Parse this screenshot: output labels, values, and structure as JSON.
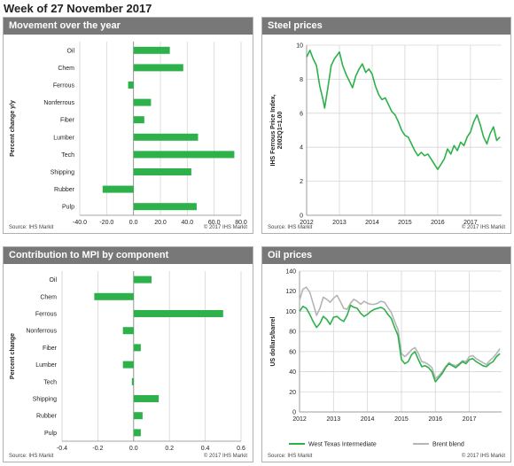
{
  "page": {
    "title": "Week of 27 November 2017"
  },
  "colors": {
    "green": "#2db14a",
    "grey_line": "#b5b5b5",
    "header_bg": "#787878",
    "grid": "#d6d6d6"
  },
  "panels": [
    {
      "title": "Movement over the year",
      "source": "Source: IHS Markit",
      "copyright": "© 2017 IHS Markit"
    },
    {
      "title": "Steel prices",
      "source": "Source: IHS Markit",
      "copyright": "© 2017 IHS Markit"
    },
    {
      "title": "Contribution  to MPI by component",
      "source": "Source: IHS Markit",
      "copyright": "© 2017 IHS Markit"
    },
    {
      "title": "Oil  prices",
      "source": "Source: IHS Markit",
      "copyright": "© 2017 IHS Markit"
    }
  ],
  "chart_data": [
    {
      "type": "bar",
      "orientation": "horizontal",
      "title": "Movement over the year",
      "categories": [
        "Oil",
        "Chem",
        "Ferrous",
        "Nonferrous",
        "Fiber",
        "Lumber",
        "Tech",
        "Shipping",
        "Rubber",
        "Pulp"
      ],
      "values": [
        27,
        37,
        -4,
        13,
        8,
        48,
        75,
        43,
        -23,
        47
      ],
      "xlabel": "",
      "ylabel": "Percent change y/y",
      "xlim": [
        -40,
        80
      ],
      "xticks": [
        -40,
        -20,
        0,
        20,
        40,
        60,
        80
      ],
      "xtick_labels": [
        "-40.0",
        "-20.0",
        "0.0",
        "20.0",
        "40.0",
        "60.0",
        "80.0"
      ],
      "grid": true
    },
    {
      "type": "line",
      "title": "Steel prices",
      "ylabel": "IHS Ferrous Price Index,\n2002Q1=1.00",
      "xlim": [
        2012,
        2017.95
      ],
      "ylim": [
        0,
        10
      ],
      "xticks": [
        2012,
        2013,
        2014,
        2015,
        2016,
        2017
      ],
      "xtick_labels": [
        "2012",
        "2013",
        "2014",
        "2015",
        "2016",
        "2017"
      ],
      "yticks": [
        0,
        2,
        4,
        6,
        8,
        10
      ],
      "grid": true,
      "series": [
        {
          "x": [
            2012.0,
            2012.1,
            2012.2,
            2012.3,
            2012.4,
            2012.5,
            2012.55,
            2012.65,
            2012.75,
            2012.85,
            2013.0,
            2013.1,
            2013.2,
            2013.3,
            2013.4,
            2013.5,
            2013.6,
            2013.7,
            2013.8,
            2013.9,
            2014.0,
            2014.1,
            2014.2,
            2014.3,
            2014.4,
            2014.5,
            2014.6,
            2014.7,
            2014.8,
            2014.9,
            2015.0,
            2015.1,
            2015.2,
            2015.3,
            2015.4,
            2015.5,
            2015.6,
            2015.7,
            2015.8,
            2015.9,
            2016.0,
            2016.1,
            2016.2,
            2016.3,
            2016.4,
            2016.5,
            2016.6,
            2016.7,
            2016.8,
            2016.9,
            2017.0,
            2017.1,
            2017.2,
            2017.3,
            2017.4,
            2017.5,
            2017.6,
            2017.7,
            2017.8,
            2017.9
          ],
          "values": [
            9.3,
            9.7,
            9.2,
            8.8,
            7.6,
            6.8,
            6.3,
            7.5,
            8.8,
            9.2,
            9.6,
            8.8,
            8.3,
            7.9,
            7.5,
            8.2,
            8.6,
            8.9,
            8.4,
            8.6,
            8.3,
            7.6,
            7.1,
            6.8,
            6.9,
            6.5,
            6.1,
            5.9,
            5.5,
            5.0,
            4.7,
            4.6,
            4.2,
            3.8,
            3.5,
            3.7,
            3.5,
            3.6,
            3.3,
            3.0,
            2.7,
            3.0,
            3.3,
            3.9,
            3.6,
            4.1,
            3.8,
            4.3,
            4.1,
            4.6,
            4.9,
            5.5,
            5.9,
            5.3,
            4.6,
            4.2,
            4.8,
            5.2,
            4.4,
            4.6
          ]
        }
      ]
    },
    {
      "type": "bar",
      "orientation": "horizontal",
      "title": "Contribution  to MPI by component",
      "categories": [
        "Oil",
        "Chem",
        "Ferrous",
        "Nonferrous",
        "Fiber",
        "Lumber",
        "Tech",
        "Shipping",
        "Rubber",
        "Pulp"
      ],
      "values": [
        0.1,
        -0.22,
        0.5,
        -0.06,
        0.04,
        -0.06,
        -0.01,
        0.14,
        0.05,
        0.04
      ],
      "xlabel": "",
      "ylabel": "Percent change",
      "xlim": [
        -0.4,
        0.6
      ],
      "xticks": [
        -0.4,
        -0.2,
        0,
        0.2,
        0.4,
        0.6
      ],
      "xtick_labels": [
        "-0.4",
        "-0.2",
        "0.0",
        "0.2",
        "0.4",
        "0.6"
      ],
      "grid": true
    },
    {
      "type": "line",
      "title": "Oil  prices",
      "ylabel": "US dollars/barrel",
      "xlim": [
        2012,
        2017.95
      ],
      "ylim": [
        0,
        140
      ],
      "xticks": [
        2012,
        2013,
        2014,
        2015,
        2016,
        2017
      ],
      "xtick_labels": [
        "2012",
        "2013",
        "2014",
        "2015",
        "2016",
        "2017"
      ],
      "yticks": [
        0,
        20,
        40,
        60,
        80,
        100,
        120,
        140
      ],
      "grid": true,
      "legend": "bottom",
      "series": [
        {
          "name": "West Texas Intermediate",
          "x": [
            2012.0,
            2012.1,
            2012.2,
            2012.3,
            2012.4,
            2012.5,
            2012.6,
            2012.7,
            2012.8,
            2012.9,
            2013.0,
            2013.1,
            2013.2,
            2013.3,
            2013.4,
            2013.5,
            2013.6,
            2013.7,
            2013.8,
            2013.9,
            2014.0,
            2014.1,
            2014.2,
            2014.3,
            2014.4,
            2014.5,
            2014.6,
            2014.7,
            2014.8,
            2014.9,
            2015.0,
            2015.1,
            2015.2,
            2015.3,
            2015.4,
            2015.5,
            2015.6,
            2015.7,
            2015.8,
            2015.9,
            2016.0,
            2016.1,
            2016.2,
            2016.3,
            2016.4,
            2016.5,
            2016.6,
            2016.7,
            2016.8,
            2016.9,
            2017.0,
            2017.1,
            2017.2,
            2017.3,
            2017.4,
            2017.5,
            2017.6,
            2017.7,
            2017.8,
            2017.9
          ],
          "values": [
            100,
            105,
            103,
            97,
            90,
            84,
            88,
            95,
            92,
            87,
            94,
            95,
            92,
            90,
            96,
            106,
            104,
            103,
            98,
            95,
            97,
            100,
            102,
            103,
            104,
            102,
            97,
            93,
            84,
            76,
            52,
            48,
            50,
            57,
            60,
            52,
            45,
            46,
            44,
            40,
            30,
            34,
            38,
            44,
            48,
            46,
            44,
            47,
            50,
            48,
            52,
            53,
            50,
            48,
            46,
            45,
            48,
            50,
            55,
            58
          ]
        },
        {
          "name": "Brent blend",
          "x": [
            2012.0,
            2012.1,
            2012.2,
            2012.3,
            2012.4,
            2012.5,
            2012.6,
            2012.7,
            2012.8,
            2012.9,
            2013.0,
            2013.1,
            2013.2,
            2013.3,
            2013.4,
            2013.5,
            2013.6,
            2013.7,
            2013.8,
            2013.9,
            2014.0,
            2014.1,
            2014.2,
            2014.3,
            2014.4,
            2014.5,
            2014.6,
            2014.7,
            2014.8,
            2014.9,
            2015.0,
            2015.1,
            2015.2,
            2015.3,
            2015.4,
            2015.5,
            2015.6,
            2015.7,
            2015.8,
            2015.9,
            2016.0,
            2016.1,
            2016.2,
            2016.3,
            2016.4,
            2016.5,
            2016.6,
            2016.7,
            2016.8,
            2016.9,
            2017.0,
            2017.1,
            2017.2,
            2017.3,
            2017.4,
            2017.5,
            2017.6,
            2017.7,
            2017.8,
            2017.9
          ],
          "values": [
            111,
            122,
            124,
            119,
            108,
            96,
            103,
            114,
            112,
            109,
            113,
            116,
            110,
            103,
            102,
            108,
            112,
            110,
            107,
            110,
            108,
            107,
            107,
            108,
            110,
            109,
            104,
            99,
            90,
            82,
            58,
            55,
            58,
            62,
            64,
            58,
            50,
            49,
            47,
            44,
            33,
            36,
            40,
            45,
            49,
            47,
            46,
            48,
            51,
            50,
            55,
            56,
            53,
            51,
            49,
            47,
            51,
            54,
            58,
            63
          ]
        }
      ]
    }
  ]
}
